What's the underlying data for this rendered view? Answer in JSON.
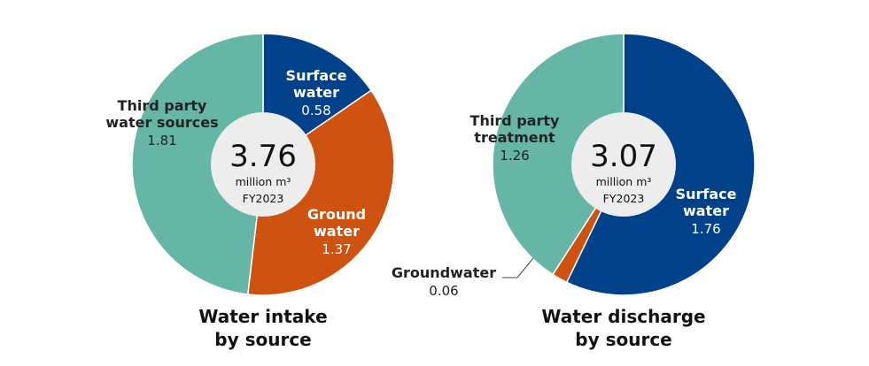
{
  "chart_data": [
    {
      "type": "pie",
      "title": "Water intake\nby source",
      "center": {
        "total": "3.76",
        "unit": "million m³",
        "period": "FY2023"
      },
      "slices": [
        {
          "label": "Surface\nwater",
          "value": 0.58,
          "value_text": "0.58",
          "color": "#00418a"
        },
        {
          "label": "Ground\nwater",
          "value": 1.37,
          "value_text": "1.37",
          "color": "#ce5310"
        },
        {
          "label": "Third party\nwater sources",
          "value": 1.81,
          "value_text": "1.81",
          "color": "#66b6a8"
        }
      ]
    },
    {
      "type": "pie",
      "title": "Water discharge\nby source",
      "center": {
        "total": "3.07",
        "unit": "million m³",
        "period": "FY2023"
      },
      "slices": [
        {
          "label": "Surface\nwater",
          "value": 1.76,
          "value_text": "1.76",
          "color": "#00418a"
        },
        {
          "label": "Groundwater",
          "value": 0.06,
          "value_text": "0.06",
          "color": "#ce5310"
        },
        {
          "label": "Third party\ntreatment",
          "value": 1.26,
          "value_text": "1.26",
          "color": "#66b6a8"
        }
      ]
    }
  ]
}
